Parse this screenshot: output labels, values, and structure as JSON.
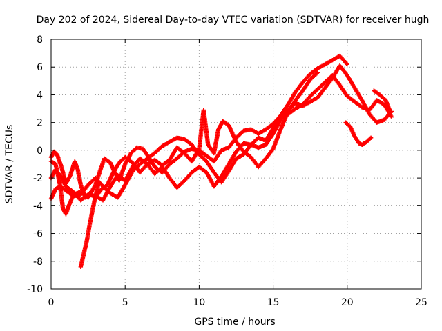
{
  "chart_data": {
    "type": "scatter",
    "title": "Day 202 of 2024, Sidereal Day-to-day VTEC variation (SDTVAR) for receiver hugh",
    "xlabel": "GPS time / hours",
    "ylabel": "SDTVAR / TECUs",
    "xlim": [
      0,
      25
    ],
    "ylim": [
      -10,
      8
    ],
    "xticks": [
      0,
      5,
      10,
      15,
      20,
      25
    ],
    "yticks": [
      -10,
      -8,
      -6,
      -4,
      -2,
      0,
      2,
      4,
      6,
      8
    ],
    "grid": true,
    "marker": "+",
    "color": "#ff0000",
    "series": [
      {
        "points": [
          [
            0,
            -0.8
          ],
          [
            0.3,
            -1.0
          ],
          [
            0.6,
            -2.5
          ],
          [
            0.8,
            -4.2
          ],
          [
            1.0,
            -4.6
          ],
          [
            1.2,
            -4.0
          ],
          [
            1.5,
            -3.2
          ],
          [
            2.0,
            -3.0
          ],
          [
            2.5,
            -3.4
          ],
          [
            3.0,
            -2.5
          ],
          [
            3.3,
            -1.5
          ],
          [
            3.6,
            -0.6
          ],
          [
            4.0,
            -0.9
          ],
          [
            4.3,
            -1.6
          ],
          [
            4.6,
            -2.2
          ],
          [
            5.0,
            -1.0
          ],
          [
            5.4,
            -0.2
          ],
          [
            5.8,
            0.2
          ],
          [
            6.2,
            0.1
          ],
          [
            6.6,
            -0.5
          ],
          [
            7.0,
            -1.2
          ],
          [
            7.5,
            -1.6
          ],
          [
            8.0,
            -1.0
          ],
          [
            8.5,
            -0.6
          ],
          [
            9.0,
            -0.1
          ],
          [
            9.5,
            0.1
          ],
          [
            10.0,
            0.0
          ],
          [
            10.5,
            -0.4
          ],
          [
            11.0,
            -0.8
          ],
          [
            11.5,
            0.0
          ],
          [
            12.0,
            0.2
          ],
          [
            12.5,
            0.9
          ],
          [
            13.0,
            1.4
          ],
          [
            13.5,
            1.5
          ],
          [
            14.0,
            1.2
          ],
          [
            14.5,
            1.5
          ],
          [
            15.0,
            1.9
          ],
          [
            15.5,
            2.5
          ],
          [
            16.0,
            3.3
          ],
          [
            16.5,
            4.2
          ],
          [
            17.0,
            4.9
          ],
          [
            17.5,
            5.5
          ],
          [
            18.0,
            5.9
          ],
          [
            18.5,
            6.2
          ],
          [
            19.0,
            6.5
          ],
          [
            19.5,
            6.8
          ],
          [
            20.0,
            6.2
          ]
        ]
      },
      {
        "points": [
          [
            0,
            -3.5
          ],
          [
            0.3,
            -2.8
          ],
          [
            0.6,
            -2.6
          ],
          [
            1.0,
            -2.9
          ],
          [
            1.5,
            -3.3
          ],
          [
            2.0,
            -3.2
          ],
          [
            2.5,
            -2.5
          ],
          [
            3.0,
            -2.0
          ],
          [
            3.5,
            -2.6
          ],
          [
            4.0,
            -3.1
          ],
          [
            4.5,
            -3.4
          ],
          [
            5.0,
            -2.5
          ],
          [
            5.5,
            -1.5
          ],
          [
            6.0,
            -1.0
          ],
          [
            6.5,
            -0.6
          ],
          [
            7.0,
            -0.2
          ],
          [
            7.5,
            0.3
          ],
          [
            8.0,
            0.6
          ],
          [
            8.5,
            0.9
          ],
          [
            9.0,
            0.8
          ],
          [
            9.5,
            0.4
          ],
          [
            10.0,
            -0.3
          ],
          [
            10.5,
            -0.8
          ],
          [
            11.0,
            -1.6
          ],
          [
            11.5,
            -2.3
          ],
          [
            12.0,
            -1.5
          ],
          [
            12.5,
            -0.6
          ],
          [
            13.0,
            -0.3
          ],
          [
            13.5,
            0.4
          ],
          [
            14.0,
            0.2
          ],
          [
            14.5,
            0.4
          ],
          [
            15.0,
            1.2
          ],
          [
            15.5,
            2.2
          ],
          [
            16.0,
            2.9
          ],
          [
            16.5,
            3.4
          ],
          [
            17.0,
            3.2
          ],
          [
            17.5,
            3.5
          ],
          [
            18.0,
            3.8
          ],
          [
            18.5,
            4.5
          ],
          [
            19.0,
            5.2
          ],
          [
            19.5,
            6.1
          ],
          [
            20.0,
            5.4
          ],
          [
            20.5,
            4.5
          ],
          [
            21.0,
            3.6
          ],
          [
            21.5,
            2.6
          ],
          [
            22.0,
            2.0
          ],
          [
            22.5,
            2.2
          ],
          [
            23.0,
            2.8
          ]
        ]
      },
      {
        "points": [
          [
            0,
            -2.0
          ],
          [
            0.3,
            -1.4
          ],
          [
            0.6,
            -1.8
          ],
          [
            1.0,
            -2.6
          ],
          [
            1.5,
            -3.0
          ],
          [
            2.0,
            -3.6
          ],
          [
            2.5,
            -3.2
          ],
          [
            3.0,
            -3.3
          ],
          [
            3.5,
            -3.6
          ],
          [
            4.0,
            -2.6
          ],
          [
            4.5,
            -1.8
          ],
          [
            5.0,
            -2.2
          ],
          [
            5.5,
            -1.2
          ],
          [
            6.0,
            -0.6
          ],
          [
            6.5,
            -1.0
          ],
          [
            7.0,
            -1.7
          ],
          [
            7.5,
            -1.2
          ],
          [
            8.0,
            -2.0
          ],
          [
            8.5,
            -2.7
          ],
          [
            9.0,
            -2.2
          ],
          [
            9.5,
            -1.6
          ],
          [
            10.0,
            -1.2
          ],
          [
            10.5,
            -1.6
          ],
          [
            11.0,
            -2.6
          ],
          [
            11.5,
            -1.9
          ],
          [
            12.0,
            -1.0
          ],
          [
            12.5,
            -0.1
          ],
          [
            13.0,
            0.5
          ],
          [
            13.5,
            0.4
          ],
          [
            14.0,
            0.9
          ],
          [
            14.5,
            0.7
          ],
          [
            15.0,
            1.6
          ],
          [
            15.5,
            2.3
          ],
          [
            16.0,
            2.6
          ],
          [
            16.5,
            3.0
          ],
          [
            17.0,
            3.3
          ],
          [
            17.5,
            3.9
          ],
          [
            18.0,
            4.4
          ],
          [
            18.5,
            4.9
          ],
          [
            19.0,
            5.4
          ],
          [
            19.5,
            4.7
          ],
          [
            20.0,
            3.9
          ],
          [
            20.5,
            3.5
          ],
          [
            21.0,
            3.1
          ],
          [
            21.5,
            2.9
          ],
          [
            22.0,
            3.6
          ],
          [
            22.5,
            3.3
          ],
          [
            23.0,
            2.4
          ]
        ]
      },
      {
        "points": [
          [
            0,
            -0.5
          ],
          [
            0.2,
            -0.1
          ],
          [
            0.4,
            -0.3
          ],
          [
            0.7,
            -1.2
          ],
          [
            1.0,
            -2.4
          ],
          [
            1.3,
            -1.8
          ],
          [
            1.6,
            -0.8
          ],
          [
            1.8,
            -1.4
          ],
          [
            2.0,
            -2.5
          ],
          [
            2.3,
            -3.4
          ],
          [
            2.6,
            -3.1
          ],
          [
            3.0,
            -3.4
          ],
          [
            3.4,
            -2.8
          ],
          [
            3.8,
            -2.5
          ],
          [
            4.2,
            -1.6
          ],
          [
            4.6,
            -0.9
          ],
          [
            5.0,
            -0.5
          ],
          [
            5.5,
            -0.9
          ],
          [
            6.0,
            -1.6
          ],
          [
            6.5,
            -1.0
          ],
          [
            7.0,
            -0.7
          ],
          [
            7.5,
            -1.1
          ],
          [
            8.0,
            -0.7
          ],
          [
            8.5,
            0.2
          ],
          [
            9.0,
            -0.2
          ],
          [
            9.5,
            -0.8
          ],
          [
            10.0,
            0.1
          ],
          [
            10.3,
            2.9
          ],
          [
            10.6,
            0.4
          ],
          [
            11.0,
            -0.2
          ],
          [
            11.3,
            1.5
          ],
          [
            11.6,
            2.1
          ],
          [
            12.0,
            1.8
          ],
          [
            12.5,
            0.6
          ],
          [
            13.0,
            -0.1
          ],
          [
            13.5,
            -0.5
          ],
          [
            14.0,
            -1.2
          ],
          [
            14.5,
            -0.6
          ],
          [
            15.0,
            0.1
          ],
          [
            15.5,
            1.5
          ],
          [
            16.0,
            2.8
          ],
          [
            16.5,
            3.6
          ],
          [
            17.0,
            4.3
          ],
          [
            17.5,
            5.1
          ],
          [
            18.0,
            5.6
          ]
        ]
      },
      {
        "points": [
          [
            2.0,
            -8.4
          ],
          [
            2.2,
            -7.5
          ],
          [
            2.4,
            -6.6
          ],
          [
            2.6,
            -5.4
          ],
          [
            2.8,
            -4.3
          ],
          [
            3.0,
            -3.3
          ],
          [
            3.2,
            -2.4
          ]
        ]
      },
      {
        "points": [
          [
            19.9,
            2.0
          ],
          [
            20.2,
            1.7
          ],
          [
            20.5,
            1.0
          ],
          [
            20.8,
            0.5
          ],
          [
            21.0,
            0.4
          ],
          [
            21.3,
            0.6
          ],
          [
            21.6,
            0.9
          ]
        ]
      },
      {
        "points": [
          [
            21.8,
            4.3
          ],
          [
            22.2,
            4.0
          ],
          [
            22.6,
            3.6
          ],
          [
            22.9,
            2.8
          ]
        ]
      }
    ]
  }
}
